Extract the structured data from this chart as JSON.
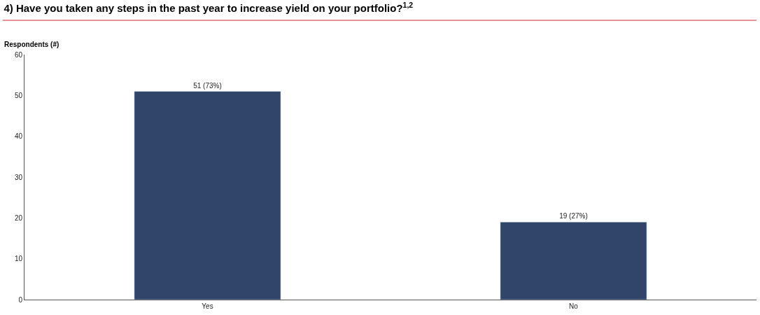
{
  "chart_data": {
    "type": "bar",
    "title": "4) Have you taken any steps in the past year to increase yield on your portfolio?$^{1,2}$",
    "ylabel": "Respondents (#)",
    "categories": [
      "Yes",
      "No"
    ],
    "values": [
      51,
      19
    ],
    "value_labels": [
      "51 (73%)",
      "19 (27%)"
    ],
    "color": "#31456a",
    "ylim": [
      0,
      60
    ],
    "yticks": [
      0,
      10,
      20,
      30,
      40,
      50,
      60
    ]
  }
}
